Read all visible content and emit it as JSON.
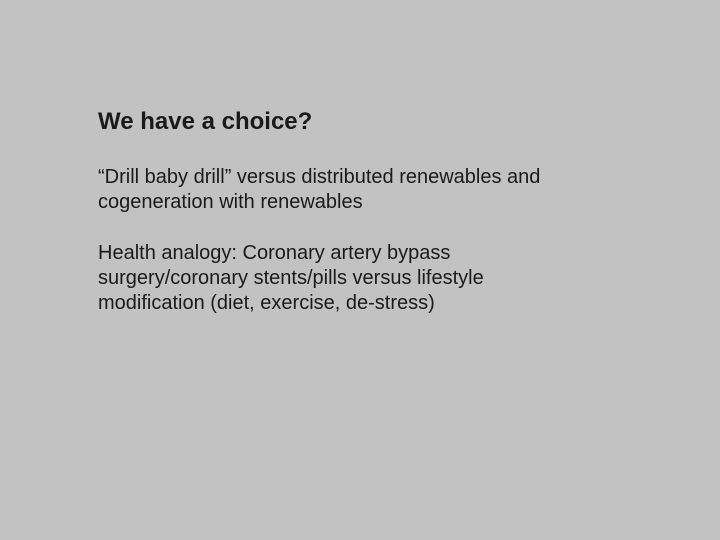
{
  "slide": {
    "background_color": "#c2c2c2",
    "text_color": "#1a1a1a",
    "font_family": "Arial",
    "title": {
      "text": "We have a choice?",
      "fontsize": 24,
      "weight": "bold"
    },
    "paragraphs": [
      "“Drill baby drill” versus distributed renewables and cogeneration with renewables",
      "Health analogy:  Coronary artery bypass surgery/coronary stents/pills versus lifestyle modification (diet, exercise, de-stress)"
    ],
    "body_fontsize": 20,
    "body_weight": "normal"
  }
}
